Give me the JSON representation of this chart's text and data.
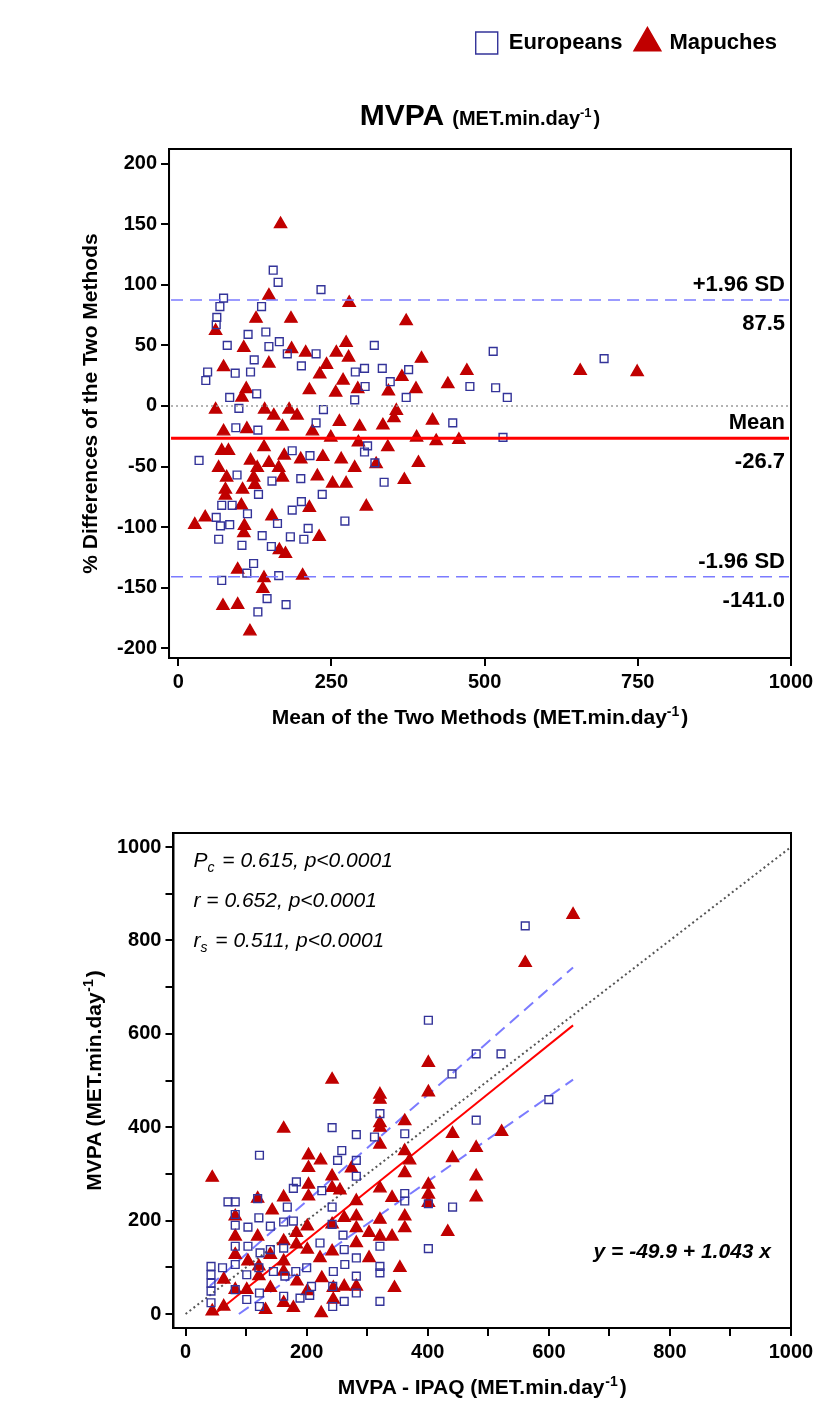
{
  "chart_data": [
    {
      "type": "scatter",
      "title": "MVPA",
      "subtitle": "(MET.min.day$^{-1}$)",
      "xlabel": "Mean of the Two Methods (MET.min.day$^{-1}$)",
      "ylabel": "% Differences of the Two Methods",
      "xlim": [
        -15,
        1000
      ],
      "xticks": [
        0,
        250,
        500,
        750,
        1000
      ],
      "ylim": [
        -208,
        212
      ],
      "yticks": [
        -200,
        -150,
        -100,
        -50,
        0,
        50,
        100,
        150,
        200
      ],
      "grid": false,
      "legend": "top right",
      "series": [
        {
          "name": "Europeans",
          "color": "#333399",
          "marker": "square",
          "x": [
            155,
            163,
            233,
            74,
            68,
            63,
            62,
            136,
            114,
            143,
            80,
            165,
            148,
            178,
            225,
            320,
            514,
            48,
            45,
            93,
            118,
            124,
            201,
            289,
            304,
            333,
            376,
            476,
            518,
            537,
            346,
            305,
            288,
            372,
            128,
            84,
            99,
            237,
            448,
            530,
            94,
            130,
            225,
            309,
            304,
            321,
            34,
            186,
            215,
            96,
            153,
            200,
            235,
            336,
            131,
            71,
            88,
            201,
            186,
            62,
            69,
            84,
            113,
            162,
            272,
            212,
            66,
            137,
            183,
            205,
            104,
            152,
            123,
            112,
            71,
            164,
            145,
            130,
            176,
            695
          ],
          "values": [
            112,
            102,
            96,
            89,
            82,
            73,
            67,
            82,
            59,
            61,
            50,
            53,
            49,
            43,
            43,
            50,
            45,
            28,
            21,
            27,
            28,
            38,
            33,
            28,
            31,
            31,
            30,
            16,
            15,
            7,
            20,
            16,
            5,
            7,
            10,
            7,
            -2,
            -3,
            -14,
            -26,
            -18,
            -20,
            -14,
            -33,
            -38,
            -47,
            -45,
            -37,
            -41,
            -57,
            -62,
            -60,
            -73,
            -63,
            -73,
            -82,
            -82,
            -79,
            -86,
            -92,
            -99,
            -98,
            -89,
            -97,
            -95,
            -101,
            -110,
            -107,
            -108,
            -110,
            -115,
            -116,
            -130,
            -138,
            -144,
            -140,
            -159,
            -170,
            -164,
            39
          ]
        },
        {
          "name": "Mapuches",
          "color": "#c00000",
          "marker": "triangle",
          "x": [
            167,
            148,
            279,
            127,
            184,
            372,
            61,
            107,
            185,
            208,
            258,
            274,
            278,
            74,
            148,
            242,
            231,
            269,
            397,
            365,
            471,
            440,
            388,
            343,
            293,
            257,
            214,
            111,
            104,
            61,
            141,
            181,
            194,
            156,
            356,
            352,
            263,
            296,
            334,
            415,
            112,
            74,
            170,
            219,
            249,
            389,
            421,
            458,
            294,
            342,
            71,
            82,
            140,
            118,
            148,
            173,
            200,
            236,
            266,
            66,
            129,
            164,
            288,
            323,
            392,
            79,
            123,
            170,
            227,
            252,
            274,
            369,
            77,
            105,
            125,
            77,
            103,
            214,
            307,
            27,
            44,
            108,
            107,
            153,
            230,
            165,
            175,
            97,
            140,
            203,
            138,
            73,
            97,
            117,
            656,
            749
          ],
          "values": [
            150,
            91,
            85,
            72,
            72,
            70,
            62,
            48,
            47,
            44,
            44,
            52,
            40,
            32,
            35,
            34,
            26,
            21,
            39,
            24,
            29,
            18,
            14,
            12,
            14,
            11,
            13,
            14,
            7,
            -3,
            -3,
            -3,
            -8,
            -8,
            -4,
            -10,
            -13,
            -17,
            -16,
            -12,
            -19,
            -21,
            -17,
            -21,
            -26,
            -26,
            -29,
            -28,
            -30,
            -34,
            -37,
            -37,
            -34,
            -45,
            -47,
            -41,
            -44,
            -42,
            -44,
            -51,
            -51,
            -51,
            -51,
            -48,
            -47,
            -59,
            -59,
            -59,
            -58,
            -64,
            -64,
            -61,
            -69,
            -69,
            -65,
            -74,
            -82,
            -84,
            -83,
            -98,
            -92,
            -99,
            -105,
            -91,
            -108,
            -119,
            -122,
            -135,
            -142,
            -140,
            -151,
            -165,
            -164,
            -186,
            29,
            28
          ]
        }
      ],
      "ref_lines": [
        {
          "axis": "y",
          "value": 87.5,
          "label": "+1.96 SD",
          "color": "#7b7bff",
          "line_style": "dashed"
        },
        {
          "axis": "y",
          "value": 0,
          "color": "#999999",
          "line_style": "dotted"
        },
        {
          "axis": "y",
          "value": -26.7,
          "label": "Mean",
          "color": "#ff0000",
          "line_style": "solid"
        },
        {
          "axis": "y",
          "value": -141.0,
          "label": "-1.96 SD",
          "color": "#7b7bff",
          "line_style": "dashed"
        }
      ],
      "annotations": [
        {
          "text": "87.5",
          "y": 87.5
        },
        {
          "text": "-26.7",
          "y": -26.7
        },
        {
          "text": "-141.0",
          "y": -141.0
        }
      ]
    },
    {
      "type": "scatter",
      "xlabel": "MVPA - IPAQ (MET.min.day$^{-1}$)",
      "ylabel": "MVPA (MET.min.day$^{-1}$)",
      "xlim": [
        -20,
        1000
      ],
      "xticks": [
        0,
        {
          "value": 100,
          "label": null
        },
        200,
        {
          "value": 300,
          "label": null
        },
        400,
        {
          "value": 500,
          "label": null
        },
        600,
        {
          "value": 700,
          "label": null
        },
        800,
        {
          "value": 900,
          "label": null
        },
        1000
      ],
      "ylim": [
        -30,
        1030
      ],
      "yticks": [
        0,
        {
          "value": 100,
          "label": null
        },
        200,
        {
          "value": 300,
          "label": null
        },
        400,
        {
          "value": 500,
          "label": null
        },
        600,
        {
          "value": 700,
          "label": null
        },
        800,
        {
          "value": 900,
          "label": null
        },
        1000
      ],
      "grid": false,
      "series": [
        {
          "color": "#333399",
          "marker": "square",
          "x": [
            561,
            401,
            480,
            521,
            440,
            600,
            480,
            321,
            242,
            282,
            312,
            362,
            122,
            258,
            251,
            282,
            282,
            183,
            178,
            225,
            362,
            362,
            441,
            70,
            82,
            119,
            168,
            82,
            121,
            103,
            82,
            140,
            162,
            178,
            242,
            242,
            260,
            401,
            82,
            103,
            123,
            140,
            162,
            222,
            262,
            321,
            401,
            282,
            42,
            42,
            42,
            42,
            42,
            61,
            82,
            101,
            121,
            145,
            164,
            182,
            200,
            244,
            263,
            282,
            321,
            321,
            82,
            101,
            122,
            122,
            162,
            189,
            208,
            243,
            262,
            282,
            321,
            243,
            205
          ],
          "values": [
            831,
            629,
            557,
            557,
            514,
            459,
            415,
            429,
            399,
            384,
            379,
            386,
            340,
            350,
            329,
            329,
            295,
            283,
            269,
            264,
            258,
            242,
            229,
            240,
            240,
            247,
            229,
            213,
            206,
            186,
            190,
            188,
            197,
            199,
            229,
            192,
            169,
            236,
            145,
            145,
            131,
            138,
            141,
            152,
            138,
            145,
            140,
            120,
            102,
            84,
            66,
            49,
            24,
            99,
            106,
            84,
            99,
            91,
            81,
            91,
            99,
            91,
            106,
            81,
            102,
            88,
            52,
            31,
            45,
            16,
            38,
            34,
            59,
            59,
            27,
            45,
            27,
            16,
            40
          ]
        },
        {
          "color": "#c00000",
          "marker": "triangle",
          "x": [
            640,
            561,
            401,
            401,
            242,
            321,
            321,
            321,
            321,
            162,
            362,
            321,
            441,
            522,
            480,
            441,
            480,
            480,
            362,
            370,
            362,
            203,
            223,
            203,
            242,
            274,
            242,
            255,
            203,
            203,
            162,
            119,
            143,
            82,
            82,
            119,
            321,
            341,
            401,
            401,
            401,
            362,
            362,
            433,
            282,
            282,
            282,
            282,
            303,
            321,
            321,
            341,
            303,
            262,
            242,
            242,
            222,
            201,
            201,
            183,
            183,
            162,
            162,
            140,
            121,
            103,
            82,
            63,
            82,
            101,
            121,
            140,
            162,
            184,
            201,
            225,
            244,
            262,
            282,
            345,
            354,
            44,
            44,
            63,
            132,
            178,
            224,
            244,
            162
          ],
          "values": [
            855,
            752,
            538,
            475,
            502,
            470,
            459,
            409,
            399,
            397,
            413,
            363,
            386,
            390,
            356,
            334,
            295,
            250,
            349,
            329,
            302,
            340,
            329,
            313,
            295,
            312,
            270,
            265,
            277,
            252,
            250,
            247,
            222,
            209,
            166,
            166,
            269,
            249,
            277,
            256,
            238,
            209,
            184,
            176,
            242,
            209,
            184,
            152,
            174,
            202,
            166,
            166,
            120,
            206,
            192,
            134,
            120,
            188,
            138,
            174,
            149,
            156,
            113,
            127,
            102,
            113,
            127,
            74,
            52,
            52,
            81,
            56,
            91,
            70,
            49,
            77,
            56,
            59,
            59,
            56,
            99,
            292,
            6,
            16,
            9,
            13,
            2,
            31,
            24
          ]
        },
        {
          "type": "line",
          "color": "#555555",
          "marker": "none",
          "line_style": "dotted",
          "x": [
            0,
            1000
          ],
          "values": [
            0,
            1000
          ]
        },
        {
          "type": "line",
          "color": "#ff0000",
          "marker": "none",
          "line_style": "solid",
          "x": [
            50,
            640
          ],
          "values": [
            2,
            618
          ]
        },
        {
          "type": "line",
          "color": "#7b7bff",
          "marker": "none",
          "line_style": "dashed",
          "x": [
            40,
            640
          ],
          "values": [
            60,
            742
          ]
        },
        {
          "type": "line",
          "color": "#7b7bff",
          "marker": "none",
          "line_style": "dashed",
          "x": [
            88,
            640
          ],
          "values": [
            0,
            502
          ]
        }
      ],
      "annotations": [
        "P$_{c}$ = 0.615, p<0.0001",
        "r = 0.652, p<0.0001",
        "r$_{s}$ = 0.511, p<0.0001",
        "y = -49.9 + 1.043 x"
      ]
    }
  ]
}
